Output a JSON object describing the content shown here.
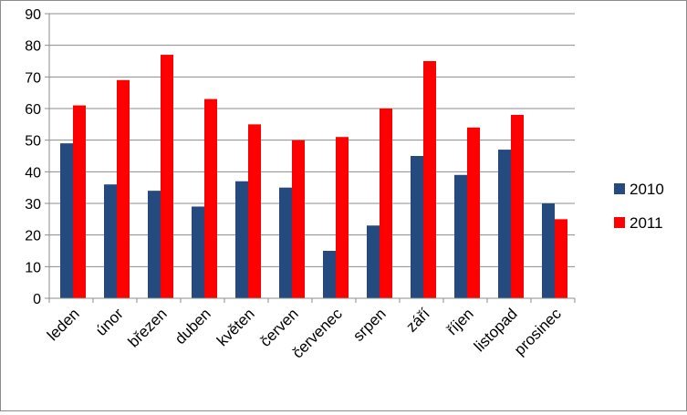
{
  "chart_data": {
    "type": "bar",
    "categories": [
      "leden",
      "únor",
      "březen",
      "duben",
      "květen",
      "červen",
      "červenec",
      "srpen",
      "září",
      "říjen",
      "listopad",
      "prosinec"
    ],
    "series": [
      {
        "name": "2010",
        "color": "#254a80",
        "values": [
          49,
          36,
          34,
          29,
          37,
          35,
          15,
          23,
          45,
          39,
          47,
          30
        ]
      },
      {
        "name": "2011",
        "color": "#ff0000",
        "values": [
          61,
          69,
          77,
          63,
          55,
          50,
          51,
          60,
          75,
          54,
          58,
          25
        ]
      }
    ],
    "ylim": [
      0,
      90
    ],
    "yticks": [
      0,
      10,
      20,
      30,
      40,
      50,
      60,
      70,
      80,
      90
    ],
    "grid": true,
    "legend_position": "right",
    "title": "",
    "xlabel": "",
    "ylabel": ""
  }
}
